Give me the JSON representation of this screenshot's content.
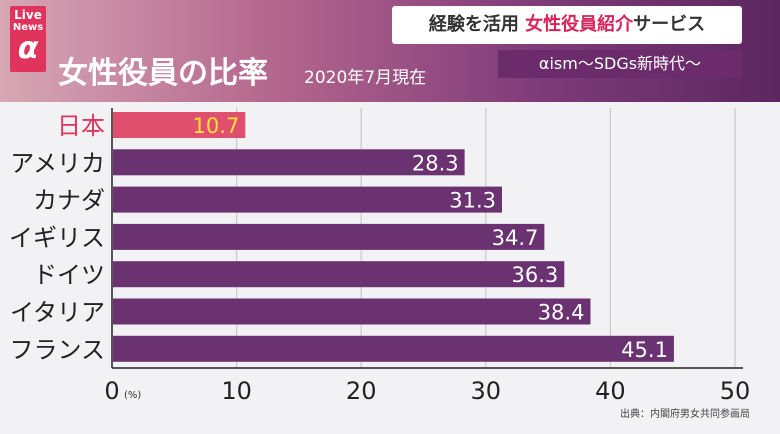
{
  "logo": {
    "line1": "Live",
    "line2": "News",
    "symbol": "α"
  },
  "header": {
    "title": "女性役員の比率",
    "subtitle": "2020年7月現在",
    "banner_part1": "経験を活用 ",
    "banner_part2": "女性役員紹介",
    "banner_part3": "サービス",
    "banner2": "αism〜SDGs新時代〜"
  },
  "source": "出典：内閣府男女共同参画局",
  "colors": {
    "highlight": "#e0506e",
    "bar": "#6a3270",
    "highlight_label": "#e0345c",
    "value_highlight": "#ffe033"
  },
  "chart_data": {
    "type": "bar",
    "orientation": "horizontal",
    "categories": [
      "日本",
      "アメリカ",
      "カナダ",
      "イギリス",
      "ドイツ",
      "イタリア",
      "フランス"
    ],
    "values": [
      10.7,
      28.3,
      31.3,
      34.7,
      36.3,
      38.4,
      45.1
    ],
    "highlight_index": 0,
    "title": "女性役員の比率",
    "xlim": [
      0,
      50
    ],
    "xticks": [
      0,
      10,
      20,
      30,
      40,
      50
    ],
    "unit": "(%)",
    "grid": true
  }
}
